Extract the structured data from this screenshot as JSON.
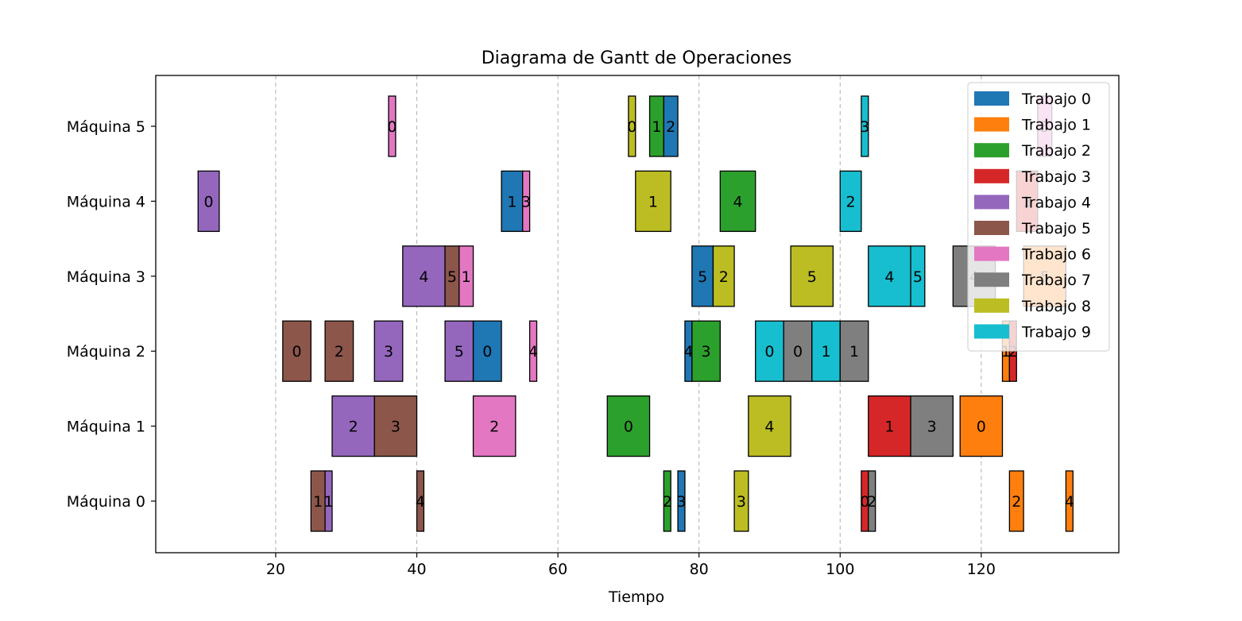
{
  "chart_data": {
    "type": "gantt",
    "title": "Diagrama de Gantt de Operaciones",
    "xlabel": "Tiempo",
    "ylabel": "",
    "xlim": [
      3,
      139.5
    ],
    "xticks": [
      20,
      40,
      60,
      80,
      100,
      120
    ],
    "grid": "vertical dashed",
    "legend_position": "upper-right",
    "machines": [
      "Máquina 0",
      "Máquina 1",
      "Máquina 2",
      "Máquina 3",
      "Máquina 4",
      "Máquina 5"
    ],
    "jobs": [
      {
        "name": "Trabajo 0",
        "color": "#1f77b4"
      },
      {
        "name": "Trabajo 1",
        "color": "#ff7f0e"
      },
      {
        "name": "Trabajo 2",
        "color": "#2ca02c"
      },
      {
        "name": "Trabajo 3",
        "color": "#d62728"
      },
      {
        "name": "Trabajo 4",
        "color": "#9467bd"
      },
      {
        "name": "Trabajo 5",
        "color": "#8c564b"
      },
      {
        "name": "Trabajo 6",
        "color": "#e377c2"
      },
      {
        "name": "Trabajo 7",
        "color": "#7f7f7f"
      },
      {
        "name": "Trabajo 8",
        "color": "#bcbd22"
      },
      {
        "name": "Trabajo 9",
        "color": "#17becf"
      }
    ],
    "operations": [
      {
        "machine": 0,
        "job": 5,
        "start": 25,
        "end": 27,
        "label": "1"
      },
      {
        "machine": 0,
        "job": 4,
        "start": 27,
        "end": 28,
        "label": "1"
      },
      {
        "machine": 0,
        "job": 5,
        "start": 40,
        "end": 41,
        "label": "4"
      },
      {
        "machine": 0,
        "job": 2,
        "start": 75,
        "end": 76,
        "label": "2"
      },
      {
        "machine": 0,
        "job": 0,
        "start": 77,
        "end": 78,
        "label": "3"
      },
      {
        "machine": 0,
        "job": 8,
        "start": 85,
        "end": 87,
        "label": "3"
      },
      {
        "machine": 0,
        "job": 3,
        "start": 103,
        "end": 104,
        "label": "0"
      },
      {
        "machine": 0,
        "job": 7,
        "start": 104,
        "end": 105,
        "label": "2"
      },
      {
        "machine": 0,
        "job": 1,
        "start": 124,
        "end": 126,
        "label": "2"
      },
      {
        "machine": 0,
        "job": 1,
        "start": 132,
        "end": 133,
        "label": "4"
      },
      {
        "machine": 1,
        "job": 4,
        "start": 28,
        "end": 34,
        "label": "2"
      },
      {
        "machine": 1,
        "job": 5,
        "start": 34,
        "end": 40,
        "label": "3"
      },
      {
        "machine": 1,
        "job": 6,
        "start": 48,
        "end": 54,
        "label": "2"
      },
      {
        "machine": 1,
        "job": 2,
        "start": 67,
        "end": 73,
        "label": "0"
      },
      {
        "machine": 1,
        "job": 8,
        "start": 87,
        "end": 93,
        "label": "4"
      },
      {
        "machine": 1,
        "job": 3,
        "start": 104,
        "end": 110,
        "label": "1"
      },
      {
        "machine": 1,
        "job": 7,
        "start": 110,
        "end": 116,
        "label": "3"
      },
      {
        "machine": 1,
        "job": 1,
        "start": 117,
        "end": 123,
        "label": "0"
      },
      {
        "machine": 2,
        "job": 5,
        "start": 21,
        "end": 25,
        "label": "0"
      },
      {
        "machine": 2,
        "job": 5,
        "start": 27,
        "end": 31,
        "label": "2"
      },
      {
        "machine": 2,
        "job": 4,
        "start": 34,
        "end": 38,
        "label": "3"
      },
      {
        "machine": 2,
        "job": 4,
        "start": 44,
        "end": 48,
        "label": "5"
      },
      {
        "machine": 2,
        "job": 0,
        "start": 48,
        "end": 52,
        "label": "0"
      },
      {
        "machine": 2,
        "job": 6,
        "start": 56,
        "end": 57,
        "label": "4"
      },
      {
        "machine": 2,
        "job": 0,
        "start": 78,
        "end": 79,
        "label": "4"
      },
      {
        "machine": 2,
        "job": 2,
        "start": 79,
        "end": 83,
        "label": "3"
      },
      {
        "machine": 2,
        "job": 9,
        "start": 88,
        "end": 92,
        "label": "0"
      },
      {
        "machine": 2,
        "job": 7,
        "start": 92,
        "end": 96,
        "label": "0"
      },
      {
        "machine": 2,
        "job": 9,
        "start": 96,
        "end": 100,
        "label": "1"
      },
      {
        "machine": 2,
        "job": 7,
        "start": 100,
        "end": 104,
        "label": "1"
      },
      {
        "machine": 2,
        "job": 1,
        "start": 123,
        "end": 124,
        "label": "1"
      },
      {
        "machine": 2,
        "job": 3,
        "start": 124,
        "end": 125,
        "label": "2"
      },
      {
        "machine": 3,
        "job": 4,
        "start": 38,
        "end": 44,
        "label": "4"
      },
      {
        "machine": 3,
        "job": 5,
        "start": 44,
        "end": 46,
        "label": "5"
      },
      {
        "machine": 3,
        "job": 6,
        "start": 46,
        "end": 48,
        "label": "1"
      },
      {
        "machine": 3,
        "job": 0,
        "start": 79,
        "end": 82,
        "label": "5"
      },
      {
        "machine": 3,
        "job": 8,
        "start": 82,
        "end": 85,
        "label": "2"
      },
      {
        "machine": 3,
        "job": 8,
        "start": 93,
        "end": 99,
        "label": "5"
      },
      {
        "machine": 3,
        "job": 9,
        "start": 104,
        "end": 110,
        "label": "4"
      },
      {
        "machine": 3,
        "job": 9,
        "start": 110,
        "end": 112,
        "label": "5"
      },
      {
        "machine": 3,
        "job": 7,
        "start": 116,
        "end": 122,
        "label": "4"
      },
      {
        "machine": 3,
        "job": 1,
        "start": 126,
        "end": 132,
        "label": "5"
      },
      {
        "machine": 4,
        "job": 4,
        "start": 9,
        "end": 12,
        "label": "0"
      },
      {
        "machine": 4,
        "job": 0,
        "start": 52,
        "end": 55,
        "label": "1"
      },
      {
        "machine": 4,
        "job": 6,
        "start": 55,
        "end": 56,
        "label": "3"
      },
      {
        "machine": 4,
        "job": 8,
        "start": 71,
        "end": 76,
        "label": "1"
      },
      {
        "machine": 4,
        "job": 2,
        "start": 83,
        "end": 88,
        "label": "4"
      },
      {
        "machine": 4,
        "job": 9,
        "start": 100,
        "end": 103,
        "label": "2"
      },
      {
        "machine": 4,
        "job": 3,
        "start": 125,
        "end": 128,
        "label": "3"
      },
      {
        "machine": 5,
        "job": 6,
        "start": 36,
        "end": 37,
        "label": "0"
      },
      {
        "machine": 5,
        "job": 8,
        "start": 70,
        "end": 71,
        "label": "0"
      },
      {
        "machine": 5,
        "job": 2,
        "start": 73,
        "end": 75,
        "label": "1"
      },
      {
        "machine": 5,
        "job": 0,
        "start": 75,
        "end": 77,
        "label": "2"
      },
      {
        "machine": 5,
        "job": 9,
        "start": 103,
        "end": 104,
        "label": "3"
      },
      {
        "machine": 5,
        "job": 6,
        "start": 128,
        "end": 130,
        "label": "5"
      }
    ]
  }
}
